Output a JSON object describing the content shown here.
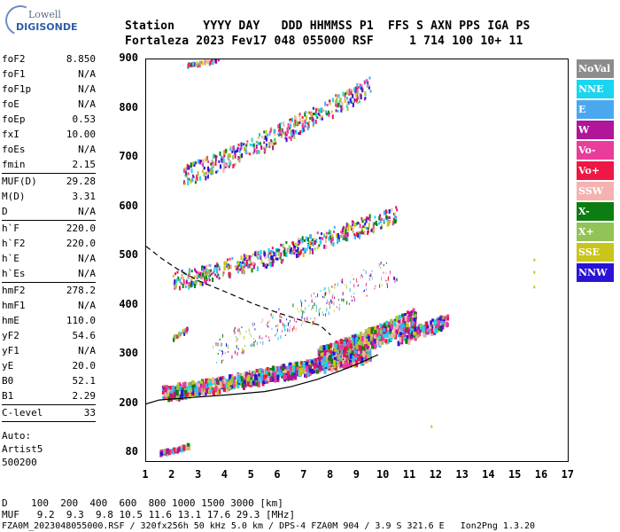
{
  "logo": {
    "line1": "Lowell",
    "line2": "DIGISONDE"
  },
  "header": {
    "labels": "Station    YYYY DAY   DDD HHMMSS P1  FFS S AXN PPS IGA PS",
    "values": "Fortaleza 2023 Fev17 048 055000 RSF     1 714 100 10+ 11"
  },
  "params": [
    {
      "label": "foF2",
      "value": "8.850"
    },
    {
      "label": "foF1",
      "value": "N/A"
    },
    {
      "label": "foF1p",
      "value": "N/A"
    },
    {
      "label": "foE",
      "value": "N/A"
    },
    {
      "label": "foEp",
      "value": "0.53"
    },
    {
      "label": "fxI",
      "value": "10.00"
    },
    {
      "label": "foEs",
      "value": "N/A"
    },
    {
      "label": "fmin",
      "value": "2.15"
    },
    {
      "sep": true
    },
    {
      "label": "MUF(D)",
      "value": "29.28"
    },
    {
      "label": "M(D)",
      "value": "3.31"
    },
    {
      "label": "D",
      "value": "N/A"
    },
    {
      "sep": true
    },
    {
      "label": "h`F",
      "value": "220.0"
    },
    {
      "label": "h`F2",
      "value": "220.0"
    },
    {
      "label": "h`E",
      "value": "N/A"
    },
    {
      "label": "h`Es",
      "value": "N/A"
    },
    {
      "sep": true
    },
    {
      "label": "hmF2",
      "value": "278.2"
    },
    {
      "label": "hmF1",
      "value": "N/A"
    },
    {
      "label": "hmE",
      "value": "110.0"
    },
    {
      "label": "yF2",
      "value": "54.6"
    },
    {
      "label": "yF1",
      "value": "N/A"
    },
    {
      "label": "yE",
      "value": "20.0"
    },
    {
      "label": "B0",
      "value": "52.1"
    },
    {
      "label": "B1",
      "value": "2.29"
    },
    {
      "sep": true
    },
    {
      "label": "C-level",
      "value": "33"
    },
    {
      "sep": true
    }
  ],
  "auto": {
    "line1": "Auto:",
    "line2": "Artist5",
    "line3": "500200"
  },
  "y_ticks": [
    "900",
    "800",
    "700",
    "600",
    "500",
    "400",
    "300",
    "200",
    "80"
  ],
  "x_ticks": [
    "1",
    "2",
    "3",
    "4",
    "5",
    "6",
    "7",
    "8",
    "9",
    "10",
    "11",
    "12",
    "13",
    "14",
    "15",
    "16",
    "17"
  ],
  "legend": [
    {
      "label": "NoVal",
      "color": "#8c8c8c"
    },
    {
      "label": "NNE",
      "color": "#1ad4f0"
    },
    {
      "label": "E",
      "color": "#4aa8ef"
    },
    {
      "label": "W",
      "color": "#b0159a"
    },
    {
      "label": "Vo-",
      "color": "#ea3c9b"
    },
    {
      "label": "Vo+",
      "color": "#ee1745"
    },
    {
      "label": "SSW",
      "color": "#f4b2b0"
    },
    {
      "label": "X-",
      "color": "#0d7d12"
    },
    {
      "label": "X+",
      "color": "#92c356"
    },
    {
      "label": "SSE",
      "color": "#c9c51a"
    },
    {
      "label": "NNW",
      "color": "#2a13d6"
    }
  ],
  "bottom": {
    "d_row": "D    100  200  400  600  800 1000 1500 3000 [km]",
    "muf_row": "MUF   9.2  9.3  9.8 10.5 11.6 13.1 17.6 29.3 [MHz]",
    "file_row": "FZA0M_2023048055000.RSF / 320fx256h 50 kHz 5.0 km / DPS-4 FZA0M 904 / 3.9 S 321.6 E   Ion2Png 1.3.20"
  }
}
